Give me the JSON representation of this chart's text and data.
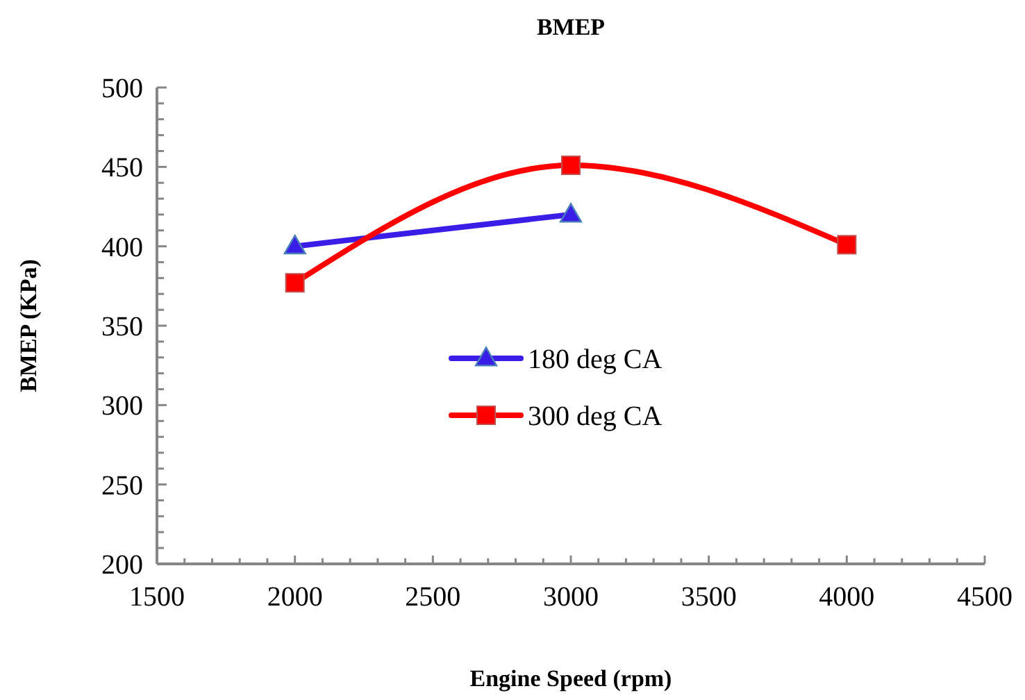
{
  "chart_data": {
    "type": "line",
    "title": "BMEP",
    "xlabel": "Engine Speed (rpm)",
    "ylabel": "BMEP (KPa)",
    "xlim": [
      1500,
      4500
    ],
    "xticks": [
      1500,
      {
        "value": 1600,
        "label": null
      },
      {
        "value": 1700,
        "label": null
      },
      {
        "value": 1800,
        "label": null
      },
      {
        "value": 1900,
        "label": null
      },
      2000,
      {
        "value": 2100,
        "label": null
      },
      {
        "value": 2200,
        "label": null
      },
      {
        "value": 2300,
        "label": null
      },
      {
        "value": 2400,
        "label": null
      },
      2500,
      {
        "value": 2600,
        "label": null
      },
      {
        "value": 2700,
        "label": null
      },
      {
        "value": 2800,
        "label": null
      },
      {
        "value": 2900,
        "label": null
      },
      3000,
      {
        "value": 3100,
        "label": null
      },
      {
        "value": 3200,
        "label": null
      },
      {
        "value": 3300,
        "label": null
      },
      {
        "value": 3400,
        "label": null
      },
      3500,
      {
        "value": 3600,
        "label": null
      },
      {
        "value": 3700,
        "label": null
      },
      {
        "value": 3800,
        "label": null
      },
      {
        "value": 3900,
        "label": null
      },
      4000,
      {
        "value": 4100,
        "label": null
      },
      {
        "value": 4200,
        "label": null
      },
      {
        "value": 4300,
        "label": null
      },
      {
        "value": 4400,
        "label": null
      },
      4500
    ],
    "ylim": [
      200,
      500
    ],
    "yticks": [
      200,
      {
        "value": 210,
        "label": null
      },
      {
        "value": 220,
        "label": null
      },
      {
        "value": 230,
        "label": null
      },
      {
        "value": 240,
        "label": null
      },
      250,
      {
        "value": 260,
        "label": null
      },
      {
        "value": 270,
        "label": null
      },
      {
        "value": 280,
        "label": null
      },
      {
        "value": 290,
        "label": null
      },
      300,
      {
        "value": 310,
        "label": null
      },
      {
        "value": 320,
        "label": null
      },
      {
        "value": 330,
        "label": null
      },
      {
        "value": 340,
        "label": null
      },
      350,
      {
        "value": 360,
        "label": null
      },
      {
        "value": 370,
        "label": null
      },
      {
        "value": 380,
        "label": null
      },
      {
        "value": 390,
        "label": null
      },
      400,
      {
        "value": 410,
        "label": null
      },
      {
        "value": 420,
        "label": null
      },
      {
        "value": 430,
        "label": null
      },
      {
        "value": 440,
        "label": null
      },
      450,
      {
        "value": 460,
        "label": null
      },
      {
        "value": 470,
        "label": null
      },
      {
        "value": 480,
        "label": null
      },
      {
        "value": 490,
        "label": null
      },
      500
    ],
    "grid": false,
    "legend": "left",
    "series": [
      {
        "name": "180 deg CA",
        "color": "#3a1ee8",
        "marker": "triangle",
        "x": [
          2000,
          3000
        ],
        "values": [
          400,
          420
        ]
      },
      {
        "name": "300 deg CA",
        "color": "#ff0000",
        "marker": "square",
        "x": [
          2000,
          3000,
          4000
        ],
        "values": [
          377,
          451,
          401
        ]
      }
    ]
  }
}
